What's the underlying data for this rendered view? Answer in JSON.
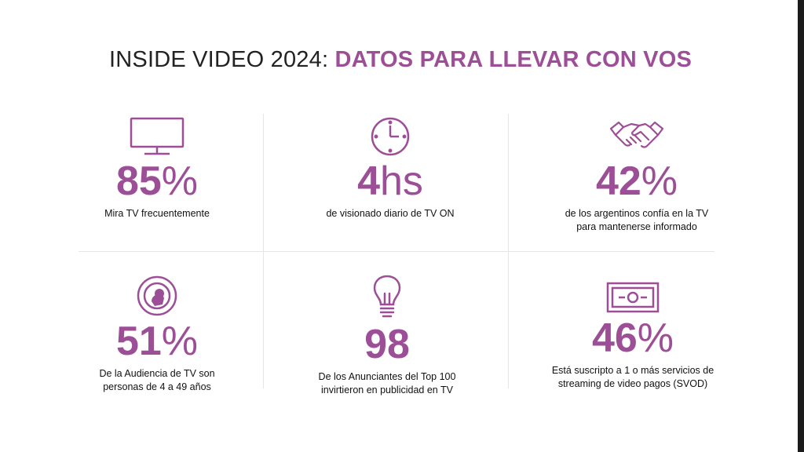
{
  "title": {
    "part1": "INSIDE VIDEO 2024: ",
    "part2": "DATOS PARA LLEVAR CON VOS"
  },
  "colors": {
    "accent": "#9c4f96",
    "text": "#111111",
    "divider": "#e6e6e6"
  },
  "stats": [
    {
      "icon": "tv-icon",
      "number": "85",
      "unit": "%",
      "line1": "Mira TV frecuentemente",
      "line2": ""
    },
    {
      "icon": "clock-icon",
      "number": "4",
      "unit": "hs",
      "line1": "de visionado diario de TV ON",
      "line2": ""
    },
    {
      "icon": "handshake-icon",
      "number": "42",
      "unit": "%",
      "line1": "de los argentinos confía en la TV",
      "line2": "para mantenerse informado"
    },
    {
      "icon": "audience-icon",
      "number": "51",
      "unit": "%",
      "line1": "De la Audiencia de TV son",
      "line2": "personas de 4 a 49 años"
    },
    {
      "icon": "lightbulb-icon",
      "number": "98",
      "unit": "",
      "line1": "De los Anunciantes del Top 100",
      "line2": "invirtieron en publicidad en TV"
    },
    {
      "icon": "money-icon",
      "number": "46",
      "unit": "%",
      "line1": "Está suscripto a 1 o más servicios de",
      "line2": "streaming de video pagos (SVOD)"
    }
  ]
}
